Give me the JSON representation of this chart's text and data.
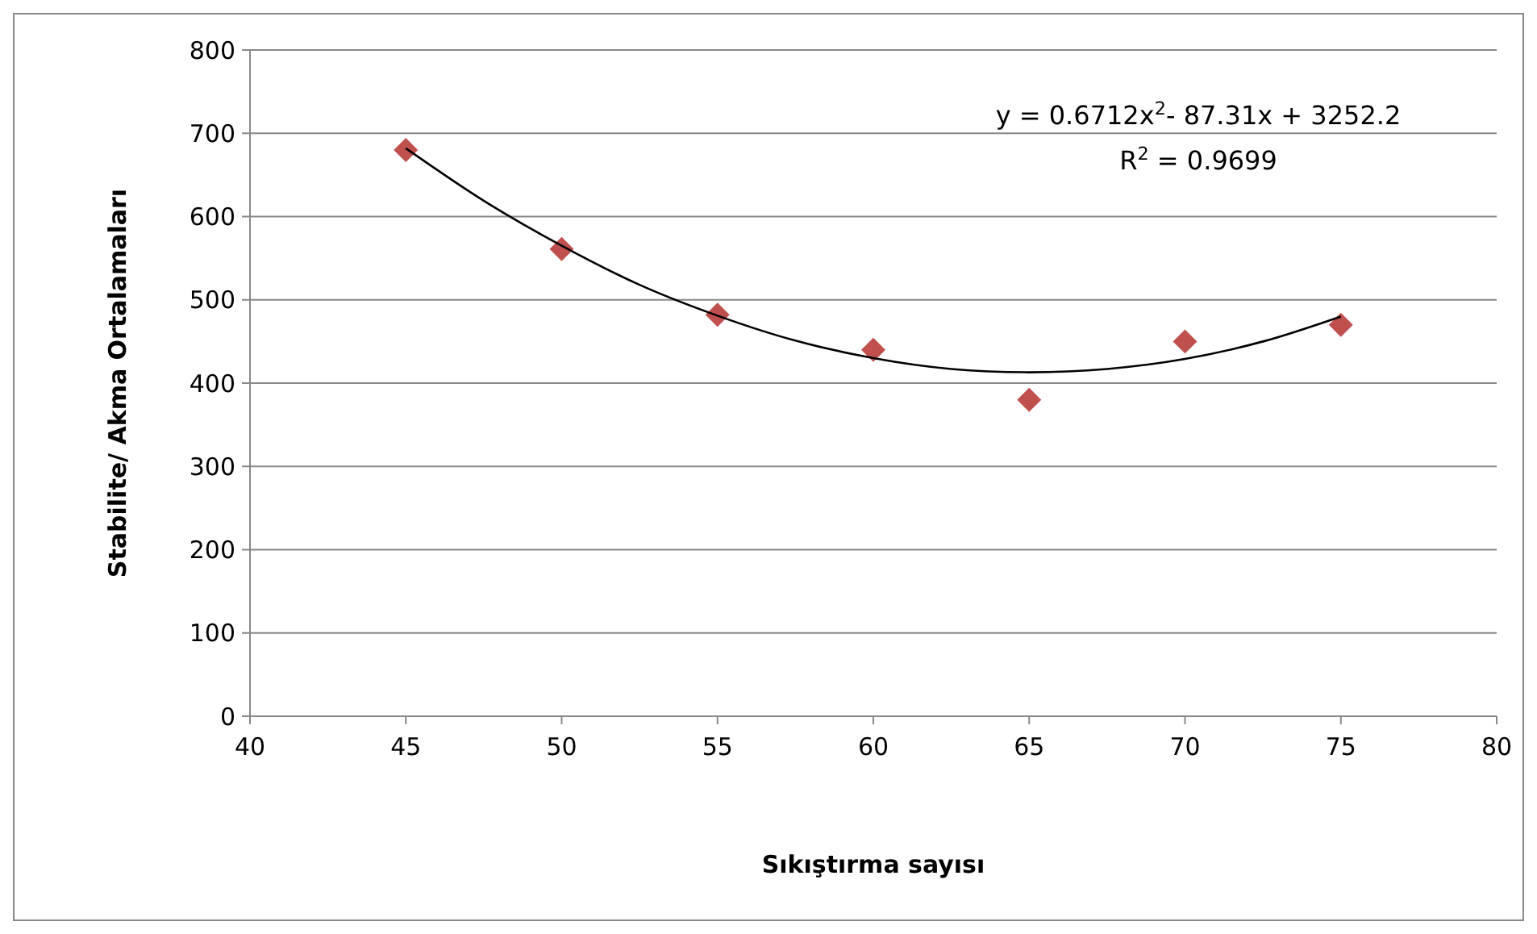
{
  "chart_data": {
    "type": "scatter",
    "xlabel": "Sıkıştırma sayısı",
    "ylabel": "Stabilite/ Akma Ortalamaları",
    "xlim": [
      40,
      80
    ],
    "xticks": [
      40,
      45,
      50,
      55,
      60,
      65,
      70,
      75,
      80
    ],
    "ylim": [
      0,
      800
    ],
    "yticks": [
      0,
      100,
      200,
      300,
      400,
      500,
      600,
      700,
      800
    ],
    "grid": "y",
    "series": [
      {
        "color": "#c0504d",
        "marker": "diamond",
        "x": [
          45,
          50,
          55,
          60,
          65,
          70,
          75
        ],
        "values": [
          680,
          561,
          482,
          440,
          380,
          450,
          470
        ]
      },
      {
        "type": "line",
        "color": "#000000",
        "marker": "none",
        "x": [
          45,
          47.5,
          50,
          52.5,
          55,
          57.5,
          60,
          62.5,
          65,
          67.5,
          70,
          72.5,
          75
        ],
        "values": [
          682,
          619,
          565,
          518,
          481,
          451,
          430,
          417,
          413,
          417,
          429,
          450,
          480
        ]
      }
    ],
    "annotations": [
      "y = 0.6712x$^{2}$- 87.31x + 3252.2",
      "R$^{2}$ = 0.9699"
    ]
  }
}
